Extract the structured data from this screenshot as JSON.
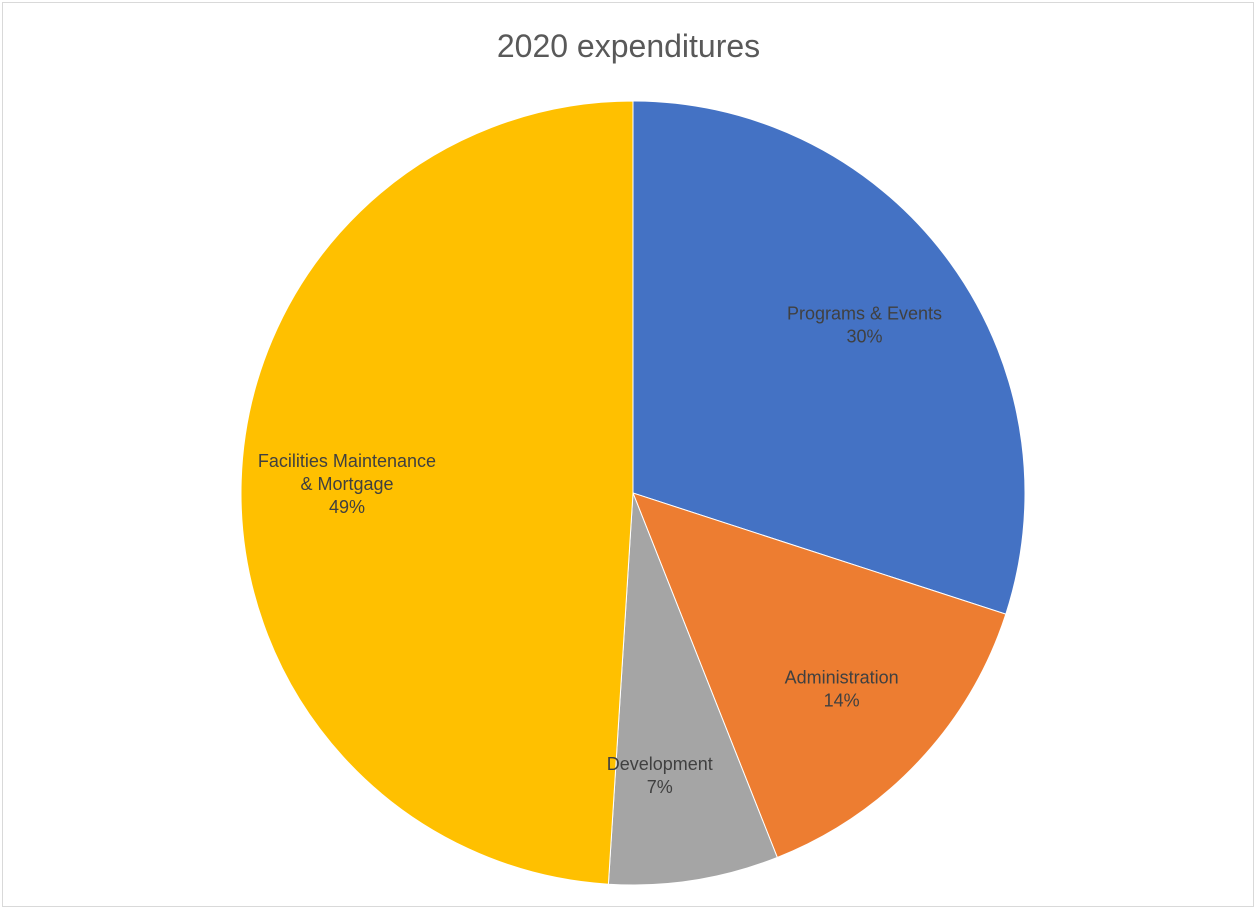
{
  "chart_data": {
    "type": "pie",
    "title": "2020 expenditures",
    "start_angle_deg": 0,
    "direction": "clockwise",
    "slices": [
      {
        "name": "Programs & Events",
        "value": 30,
        "label_lines": [
          "Programs & Events"
        ],
        "percent_label": "30%",
        "color": "#4472C4"
      },
      {
        "name": "Administration",
        "value": 14,
        "label_lines": [
          "Administration"
        ],
        "percent_label": "14%",
        "color": "#ED7D31"
      },
      {
        "name": "Development",
        "value": 7,
        "label_lines": [
          "Development"
        ],
        "percent_label": "7%",
        "color": "#A5A5A5"
      },
      {
        "name": "Facilities Maintenance & Mortgage",
        "value": 49,
        "label_lines": [
          "Facilities Maintenance",
          "& Mortgage"
        ],
        "percent_label": "49%",
        "color": "#FFC000"
      }
    ],
    "legend": "none"
  }
}
